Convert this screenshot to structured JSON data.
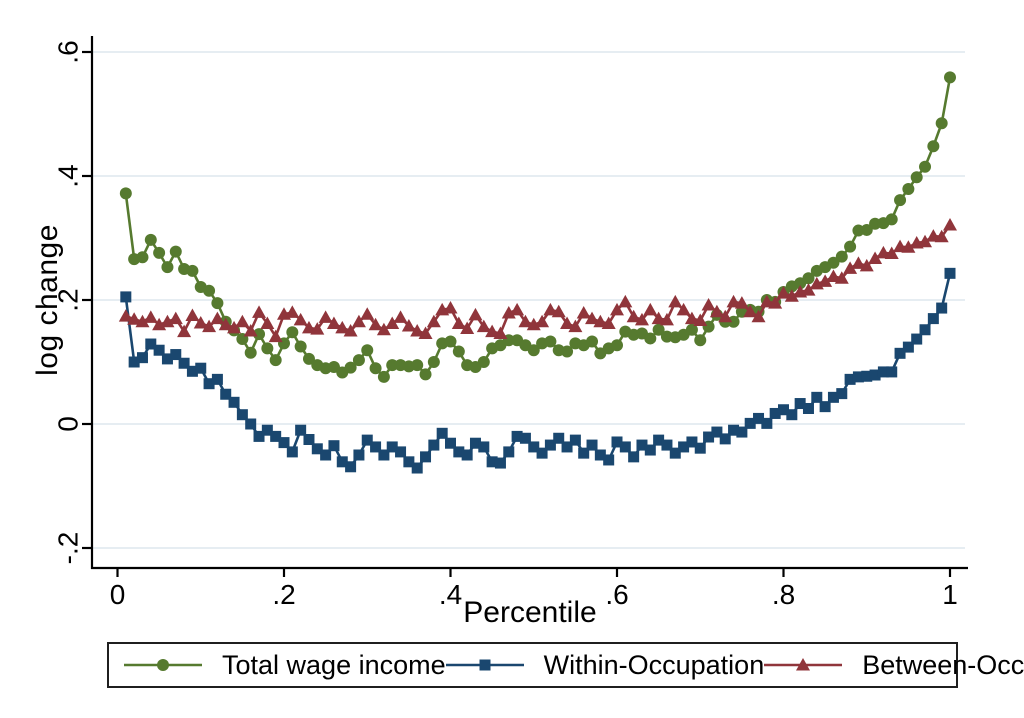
{
  "axes": {
    "ylabel": "log change",
    "xlabel": "Percentile",
    "yticks": {
      "labels": [
        ".6",
        ".4",
        ".2",
        "0",
        "-.2"
      ],
      "values": [
        0.6,
        0.4,
        0.2,
        0,
        -0.2
      ]
    },
    "xticks": {
      "labels": [
        "0",
        ".2",
        ".4",
        ".6",
        ".8",
        "1"
      ],
      "values": [
        0,
        0.2,
        0.4,
        0.6,
        0.8,
        1
      ]
    },
    "grid_color": "#e6edf2",
    "axis_color": "#000000"
  },
  "chart_data": {
    "type": "line",
    "title": "",
    "xlabel": "Percentile",
    "ylabel": "log change",
    "xlim": [
      0,
      1
    ],
    "ylim": [
      -0.2,
      0.6
    ],
    "grid": "horizontal gridlines at y = -.2, 0, .2, .4, .6",
    "legend_position": "bottom",
    "x": [
      0.01,
      0.02,
      0.03,
      0.04,
      0.05,
      0.06,
      0.07,
      0.08,
      0.09,
      0.1,
      0.11,
      0.12,
      0.13,
      0.14,
      0.15,
      0.16,
      0.17,
      0.18,
      0.19,
      0.2,
      0.21,
      0.22,
      0.23,
      0.24,
      0.25,
      0.26,
      0.27,
      0.28,
      0.29,
      0.3,
      0.31,
      0.32,
      0.33,
      0.34,
      0.35,
      0.36,
      0.37,
      0.38,
      0.39,
      0.4,
      0.41,
      0.42,
      0.43,
      0.44,
      0.45,
      0.46,
      0.47,
      0.48,
      0.49,
      0.5,
      0.51,
      0.52,
      0.53,
      0.54,
      0.55,
      0.56,
      0.57,
      0.58,
      0.59,
      0.6,
      0.61,
      0.62,
      0.63,
      0.64,
      0.65,
      0.66,
      0.67,
      0.68,
      0.69,
      0.7,
      0.71,
      0.72,
      0.73,
      0.74,
      0.75,
      0.76,
      0.77,
      0.78,
      0.79,
      0.8,
      0.81,
      0.82,
      0.83,
      0.84,
      0.85,
      0.86,
      0.87,
      0.88,
      0.89,
      0.9,
      0.91,
      0.92,
      0.93,
      0.94,
      0.95,
      0.96,
      0.97,
      0.98,
      0.99,
      1.0
    ],
    "series": [
      {
        "name": "Total wage income",
        "color": "#567a2f",
        "marker": "circle",
        "values": [
          0.372,
          0.266,
          0.269,
          0.297,
          0.276,
          0.253,
          0.278,
          0.25,
          0.247,
          0.221,
          0.215,
          0.195,
          0.165,
          0.151,
          0.137,
          0.115,
          0.145,
          0.122,
          0.103,
          0.13,
          0.148,
          0.125,
          0.105,
          0.095,
          0.09,
          0.092,
          0.083,
          0.091,
          0.103,
          0.119,
          0.09,
          0.076,
          0.095,
          0.095,
          0.093,
          0.095,
          0.08,
          0.1,
          0.13,
          0.133,
          0.117,
          0.095,
          0.092,
          0.1,
          0.122,
          0.127,
          0.135,
          0.135,
          0.127,
          0.119,
          0.13,
          0.133,
          0.119,
          0.117,
          0.13,
          0.127,
          0.133,
          0.114,
          0.122,
          0.127,
          0.149,
          0.144,
          0.146,
          0.138,
          0.152,
          0.141,
          0.14,
          0.144,
          0.152,
          0.135,
          0.157,
          0.176,
          0.165,
          0.165,
          0.181,
          0.184,
          0.181,
          0.2,
          0.197,
          0.213,
          0.222,
          0.227,
          0.235,
          0.247,
          0.253,
          0.26,
          0.27,
          0.286,
          0.312,
          0.313,
          0.323,
          0.324,
          0.33,
          0.361,
          0.379,
          0.398,
          0.415,
          0.448,
          0.485,
          0.559
        ]
      },
      {
        "name": "Within-Occupation",
        "color": "#1a476f",
        "marker": "square",
        "values": [
          0.205,
          0.1,
          0.107,
          0.129,
          0.119,
          0.105,
          0.112,
          0.098,
          0.085,
          0.09,
          0.065,
          0.072,
          0.048,
          0.035,
          0.015,
          0.0,
          -0.02,
          -0.01,
          -0.02,
          -0.03,
          -0.045,
          -0.01,
          -0.025,
          -0.04,
          -0.05,
          -0.035,
          -0.061,
          -0.069,
          -0.05,
          -0.026,
          -0.037,
          -0.05,
          -0.037,
          -0.045,
          -0.061,
          -0.071,
          -0.053,
          -0.034,
          -0.015,
          -0.031,
          -0.045,
          -0.05,
          -0.031,
          -0.037,
          -0.061,
          -0.063,
          -0.045,
          -0.02,
          -0.023,
          -0.037,
          -0.047,
          -0.034,
          -0.023,
          -0.037,
          -0.026,
          -0.047,
          -0.034,
          -0.05,
          -0.058,
          -0.029,
          -0.037,
          -0.053,
          -0.034,
          -0.042,
          -0.026,
          -0.034,
          -0.047,
          -0.037,
          -0.029,
          -0.039,
          -0.021,
          -0.013,
          -0.024,
          -0.01,
          -0.013,
          0.001,
          0.009,
          0.001,
          0.017,
          0.023,
          0.015,
          0.033,
          0.025,
          0.043,
          0.028,
          0.043,
          0.049,
          0.072,
          0.076,
          0.077,
          0.079,
          0.084,
          0.084,
          0.114,
          0.124,
          0.137,
          0.152,
          0.17,
          0.187,
          0.243
        ]
      },
      {
        "name": "Between-Occupation",
        "color": "#90353b",
        "marker": "triangle",
        "values": [
          0.174,
          0.169,
          0.165,
          0.172,
          0.16,
          0.165,
          0.17,
          0.149,
          0.175,
          0.163,
          0.157,
          0.17,
          0.16,
          0.155,
          0.165,
          0.15,
          0.18,
          0.162,
          0.141,
          0.177,
          0.18,
          0.168,
          0.155,
          0.153,
          0.172,
          0.162,
          0.155,
          0.15,
          0.165,
          0.177,
          0.16,
          0.152,
          0.162,
          0.172,
          0.158,
          0.15,
          0.146,
          0.165,
          0.184,
          0.187,
          0.162,
          0.154,
          0.176,
          0.157,
          0.149,
          0.146,
          0.179,
          0.184,
          0.165,
          0.16,
          0.165,
          0.184,
          0.181,
          0.162,
          0.157,
          0.179,
          0.17,
          0.165,
          0.162,
          0.184,
          0.197,
          0.173,
          0.168,
          0.184,
          0.17,
          0.168,
          0.197,
          0.184,
          0.17,
          0.167,
          0.192,
          0.181,
          0.173,
          0.197,
          0.195,
          0.181,
          0.173,
          0.197,
          0.195,
          0.211,
          0.206,
          0.213,
          0.216,
          0.226,
          0.23,
          0.238,
          0.235,
          0.251,
          0.259,
          0.255,
          0.267,
          0.276,
          0.275,
          0.286,
          0.285,
          0.292,
          0.294,
          0.303,
          0.302,
          0.321
        ]
      }
    ]
  }
}
